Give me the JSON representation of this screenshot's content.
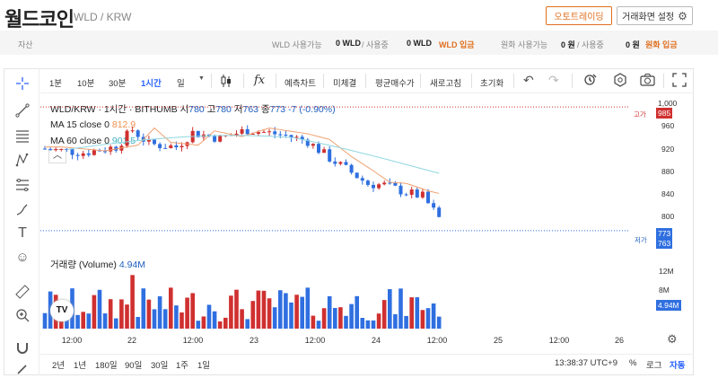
{
  "header": {
    "title": "월드코인",
    "pair": "WLD / KRW",
    "auto_trade_label": "오토트레이딩",
    "settings_label": "거래화면 설정"
  },
  "assets": {
    "label": "자산",
    "wld_avail_label": "WLD 사용가능",
    "wld_avail_value": "0 WLD",
    "in_use_label": "/ 사용중",
    "wld_in_use_value": "0 WLD",
    "wld_deposit": "WLD 입금",
    "krw_avail_label": "원화 사용가능",
    "krw_avail_value": "0 원",
    "krw_in_use_value": "0 원",
    "krw_deposit": "원화 입금"
  },
  "toolbar": {
    "intervals": [
      "1분",
      "10분",
      "30분",
      "1시간",
      "일"
    ],
    "active_interval": "1시간",
    "fx": "fx",
    "items": [
      "예측차트",
      "미체결",
      "평균매수가",
      "새로고침",
      "초기화"
    ]
  },
  "legend": {
    "symbol": "WLD/KRW · 1시간 · BITHUMB",
    "open_label": "시",
    "open": "780",
    "high_label": "고",
    "high": "780",
    "low_label": "저",
    "low": "763",
    "close_label": "종",
    "close": "773",
    "change": "-7 (-0.90%)",
    "ma15_label": "MA 15 close 0",
    "ma15_value": "812.9",
    "ma60_label": "MA 60 close 0",
    "ma60_value": "901.5",
    "volume_label": "거래량 (Volume)",
    "volume_value": "4.94M"
  },
  "price_axis": {
    "ticks": [
      "1,000",
      "960",
      "920",
      "880",
      "840",
      "800"
    ],
    "high_tag": "고가",
    "high_value": "985",
    "low_tag": "저가",
    "current": "773",
    "low_value": "763"
  },
  "volume_axis": {
    "ticks": [
      "12M",
      "8M"
    ],
    "current": "4.94M"
  },
  "time_axis": [
    "12:00",
    "22",
    "12:00",
    "23",
    "12:00",
    "24",
    "12:00",
    "25",
    "12:00",
    "26"
  ],
  "bottom": {
    "ranges": [
      "2년",
      "1년",
      "180일",
      "90일",
      "30일",
      "1주",
      "1일"
    ],
    "clock": "13:38:37 UTC+9",
    "percent": "%",
    "log": "로그",
    "auto": "자동"
  },
  "colors": {
    "up": "#d03030",
    "down": "#2f6fe0",
    "ma15": "#f0a070",
    "ma60": "#8fd8e0",
    "accent": "#e07020"
  }
}
